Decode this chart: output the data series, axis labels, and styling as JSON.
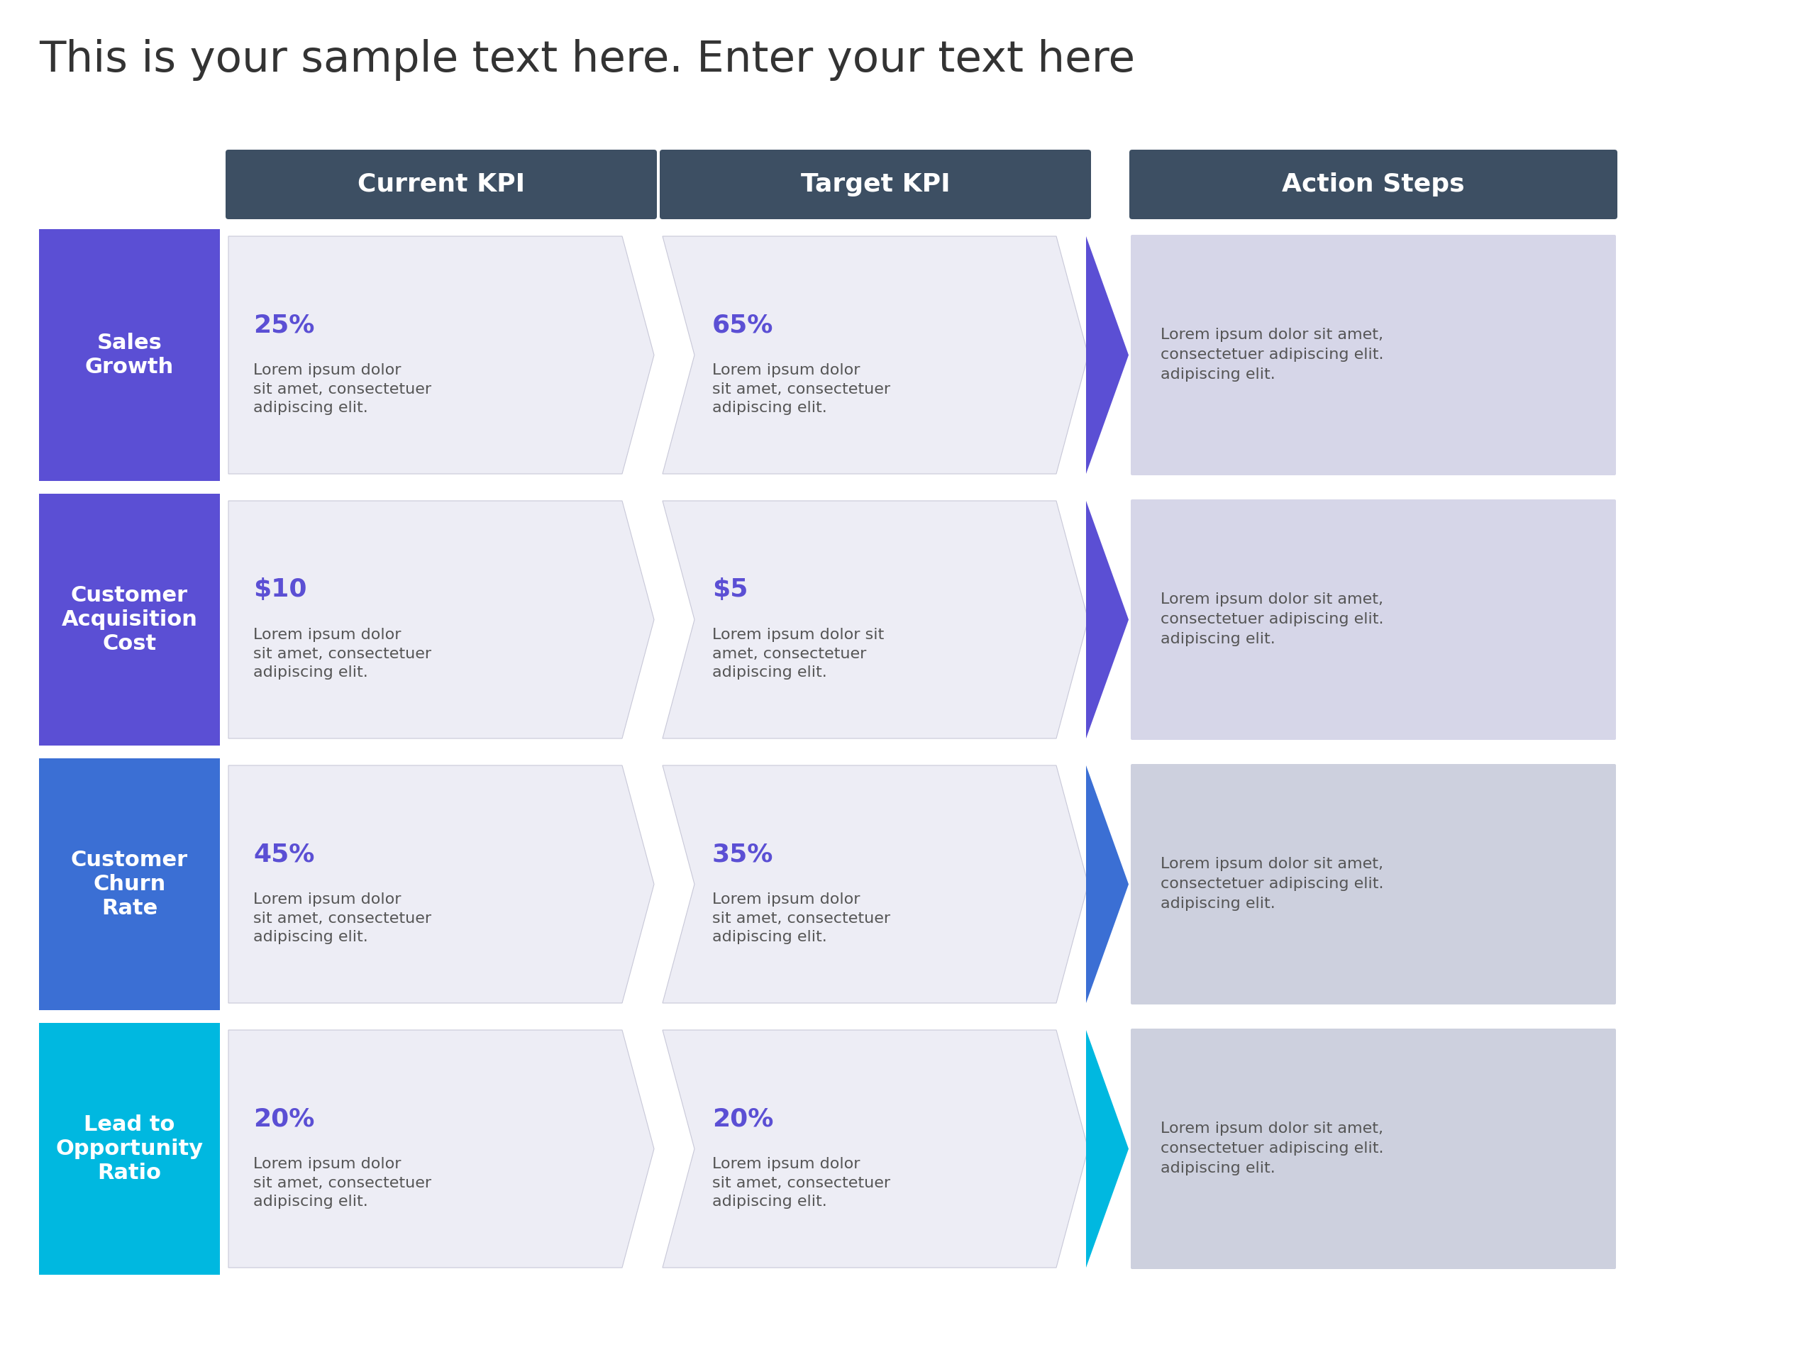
{
  "title": "This is your sample text here. Enter your text here",
  "title_color": "#333333",
  "title_fontsize": 44,
  "background_color": "#ffffff",
  "header_bg_color": "#3d4f63",
  "header_text_color": "#ffffff",
  "header_fontsize": 26,
  "headers": [
    "Current KPI",
    "Target KPI",
    "Action Steps"
  ],
  "rows": [
    {
      "label": "Sales\nGrowth",
      "label_color": "#ffffff",
      "row_color": "#5b4fd4",
      "current_kpi_value": "25%",
      "current_kpi_text": "Lorem ipsum dolor\nsit amet, consectetuer\nadipiscing elit.",
      "target_kpi_value": "65%",
      "target_kpi_text": "Lorem ipsum dolor\nsit amet, consectetuer\nadipiscing elit.",
      "arrow_color": "#5b4fd4",
      "action_text": "Lorem ipsum dolor sit amet,\nconsectetuer adipiscing elit.\nadipiscing elit.",
      "action_bg": "#d6d6e8"
    },
    {
      "label": "Customer\nAcquisition\nCost",
      "label_color": "#ffffff",
      "row_color": "#5b4fd4",
      "current_kpi_value": "$10",
      "current_kpi_text": "Lorem ipsum dolor\nsit amet, consectetuer\nadipiscing elit.",
      "target_kpi_value": "$5",
      "target_kpi_text": "Lorem ipsum dolor sit\namet, consectetuer\nadipiscing elit.",
      "arrow_color": "#5b4fd4",
      "action_text": "Lorem ipsum dolor sit amet,\nconsectetuer adipiscing elit.\nadipiscing elit.",
      "action_bg": "#d6d6e8"
    },
    {
      "label": "Customer\nChurn\nRate",
      "label_color": "#ffffff",
      "row_color": "#3b6fd4",
      "current_kpi_value": "45%",
      "current_kpi_text": "Lorem ipsum dolor\nsit amet, consectetuer\nadipiscing elit.",
      "target_kpi_value": "35%",
      "target_kpi_text": "Lorem ipsum dolor\nsit amet, consectetuer\nadipiscing elit.",
      "arrow_color": "#3b6fd4",
      "action_text": "Lorem ipsum dolor sit amet,\nconsectetuer adipiscing elit.\nadipiscing elit.",
      "action_bg": "#cdd0de"
    },
    {
      "label": "Lead to\nOpportunity\nRatio",
      "label_color": "#ffffff",
      "row_color": "#00b8e0",
      "current_kpi_value": "20%",
      "current_kpi_text": "Lorem ipsum dolor\nsit amet, consectetuer\nadipiscing elit.",
      "target_kpi_value": "20%",
      "target_kpi_text": "Lorem ipsum dolor\nsit amet, consectetuer\nadipiscing elit.",
      "arrow_color": "#00b8e0",
      "action_text": "Lorem ipsum dolor sit amet,\nconsectetuer adipiscing elit.\nadipiscing elit.",
      "action_bg": "#cdd0de"
    }
  ],
  "kpi_value_color": "#5b4fd4",
  "kpi_text_color": "#555555",
  "kpi_value_fontsize": 26,
  "kpi_text_fontsize": 16,
  "action_text_color": "#555555",
  "action_text_fontsize": 16,
  "label_fontsize": 22
}
